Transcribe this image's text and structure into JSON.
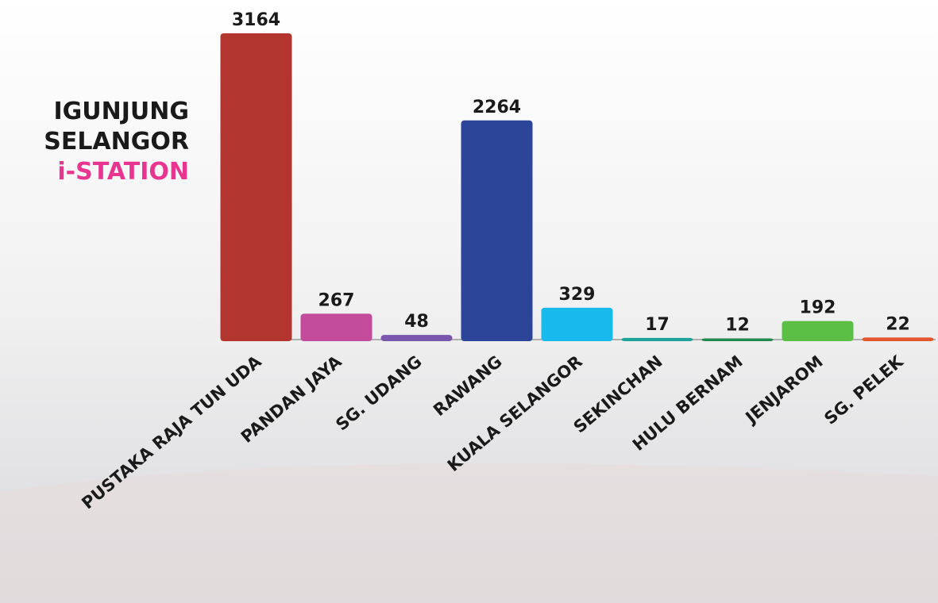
{
  "chart_data": {
    "type": "bar",
    "title_lines": [
      "IGUNJUNG",
      "SELANGOR",
      "i-STATION"
    ],
    "categories": [
      "PUSTAKA RAJA TUN UDA",
      "PANDAN JAYA",
      "SG. UDANG",
      "RAWANG",
      "KUALA SELANGOR",
      "SEKINCHAN",
      "HULU BERNAM",
      "JENJAROM",
      "SG. PELEK"
    ],
    "values": [
      3164,
      267,
      48,
      2264,
      329,
      17,
      12,
      192,
      22
    ],
    "colors": [
      "#b3352f",
      "#c24b9b",
      "#7a56ad",
      "#2d4599",
      "#18b9eb",
      "#1ea39a",
      "#1f8a4c",
      "#5cbf45",
      "#e4572e"
    ]
  }
}
